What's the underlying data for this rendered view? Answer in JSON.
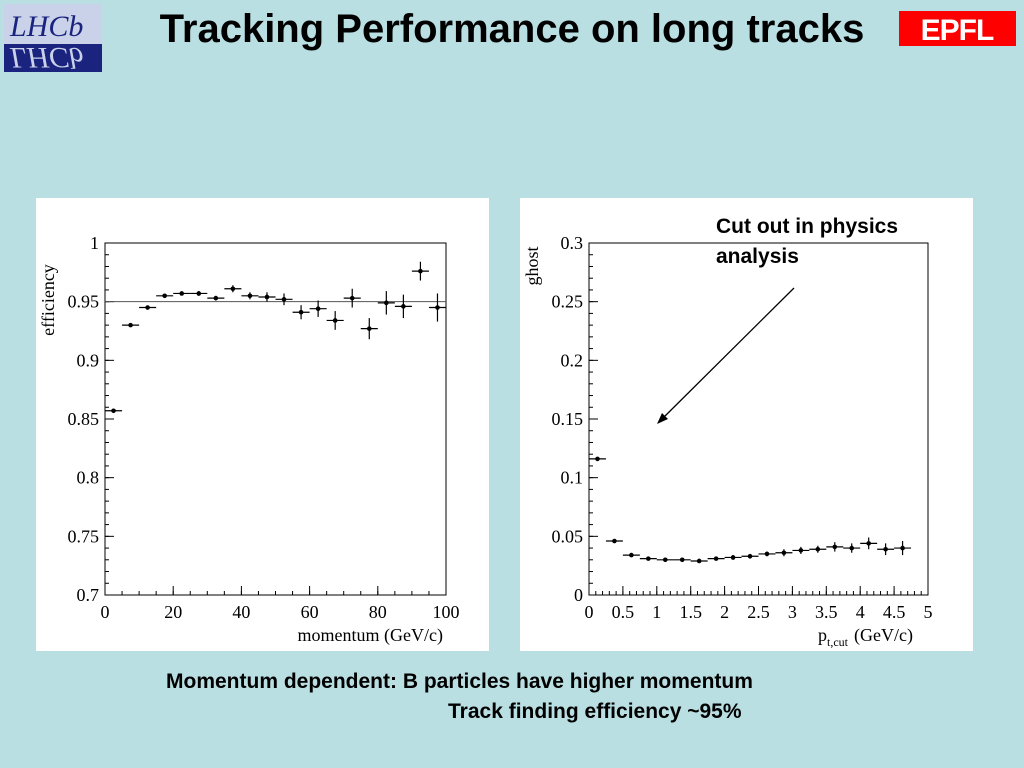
{
  "slide": {
    "title": "Tracking Performance on long tracks",
    "logo_left_text": "LHCb",
    "logo_right_text": "EPFL",
    "annotation": "Cut out in physics analysis",
    "caption_line1": "Momentum dependent: B particles have higher momentum",
    "caption_line2": "Track finding efficiency ~95%"
  },
  "colors": {
    "background": "#b9dfe3",
    "panel": "#ffffff",
    "epfl_red": "#ff0000",
    "lhcb_blue": "#1a237e"
  },
  "chart_data": [
    {
      "type": "scatter",
      "ylabel": "efficiency",
      "xlabel": "momentum (GeV/c)",
      "xlim": [
        0,
        100
      ],
      "ylim": [
        0.7,
        1.0
      ],
      "xticks": [
        0,
        20,
        40,
        60,
        80,
        100
      ],
      "yticks": [
        0.7,
        0.75,
        0.8,
        0.85,
        0.9,
        0.95,
        1
      ],
      "xtick_labels": [
        "0",
        "20",
        "40",
        "60",
        "80",
        "100"
      ],
      "ytick_labels": [
        "0.7",
        "0.75",
        "0.8",
        "0.85",
        "0.9",
        "0.95",
        "1"
      ],
      "reference_line": 0.95,
      "x_halfwidth": 2.5,
      "x": [
        2.5,
        7.5,
        12.5,
        17.5,
        22.5,
        27.5,
        32.5,
        37.5,
        42.5,
        47.5,
        52.5,
        57.5,
        62.5,
        67.5,
        72.5,
        77.5,
        82.5,
        87.5,
        92.5,
        97.5
      ],
      "y": [
        0.857,
        0.93,
        0.945,
        0.955,
        0.957,
        0.957,
        0.953,
        0.961,
        0.955,
        0.954,
        0.952,
        0.941,
        0.944,
        0.934,
        0.953,
        0.927,
        0.949,
        0.946,
        0.976,
        0.945
      ],
      "yerr": [
        0.001,
        0.0015,
        0.0015,
        0.0015,
        0.0015,
        0.002,
        0.002,
        0.003,
        0.003,
        0.004,
        0.005,
        0.006,
        0.007,
        0.008,
        0.008,
        0.009,
        0.01,
        0.01,
        0.008,
        0.012
      ]
    },
    {
      "type": "scatter",
      "ylabel": "ghost",
      "xlabel": "p",
      "xlabel_subscript": "t,cut",
      "xlabel_unit": "(GeV/c)",
      "xlim": [
        0,
        5
      ],
      "ylim": [
        0,
        0.3
      ],
      "xticks": [
        0,
        0.5,
        1,
        1.5,
        2,
        2.5,
        3,
        3.5,
        4,
        4.5,
        5
      ],
      "yticks": [
        0,
        0.05,
        0.1,
        0.15,
        0.2,
        0.25,
        0.3
      ],
      "xtick_labels": [
        "0",
        "0.5",
        "1",
        "1.5",
        "2",
        "2.5",
        "3",
        "3.5",
        "4",
        "4.5",
        "5"
      ],
      "ytick_labels": [
        "0",
        "0.05",
        "0.1",
        "0.15",
        "0.2",
        "0.25",
        "0.3"
      ],
      "x_halfwidth": 0.125,
      "x": [
        0.125,
        0.375,
        0.625,
        0.875,
        1.125,
        1.375,
        1.625,
        1.875,
        2.125,
        2.375,
        2.625,
        2.875,
        3.125,
        3.375,
        3.625,
        3.875,
        4.125,
        4.375,
        4.625
      ],
      "y": [
        0.116,
        0.046,
        0.034,
        0.031,
        0.03,
        0.03,
        0.029,
        0.031,
        0.032,
        0.033,
        0.035,
        0.036,
        0.038,
        0.039,
        0.041,
        0.04,
        0.044,
        0.039,
        0.04
      ],
      "yerr": [
        0.001,
        0.001,
        0.001,
        0.001,
        0.0015,
        0.0015,
        0.0015,
        0.0015,
        0.002,
        0.002,
        0.002,
        0.003,
        0.003,
        0.003,
        0.004,
        0.004,
        0.005,
        0.005,
        0.006
      ]
    }
  ]
}
